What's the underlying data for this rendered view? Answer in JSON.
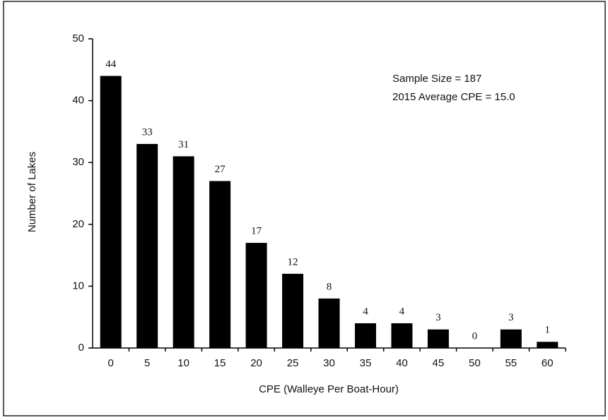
{
  "chart_data": {
    "type": "bar",
    "x_label": "CPE (Walleye Per Boat-Hour)",
    "y_label": "Number of Lakes",
    "annotations": [
      "Sample Size = 187",
      "2015 Average CPE = 15.0"
    ],
    "categories": [
      "0",
      "5",
      "10",
      "15",
      "20",
      "25",
      "30",
      "35",
      "40",
      "45",
      "50",
      "55",
      "60"
    ],
    "values": [
      44,
      33,
      31,
      27,
      17,
      12,
      8,
      4,
      4,
      3,
      0,
      3,
      1
    ],
    "color": "#000000",
    "ylim": [
      0,
      50
    ],
    "yticks": [
      0,
      10,
      20,
      30,
      40,
      50
    ]
  }
}
